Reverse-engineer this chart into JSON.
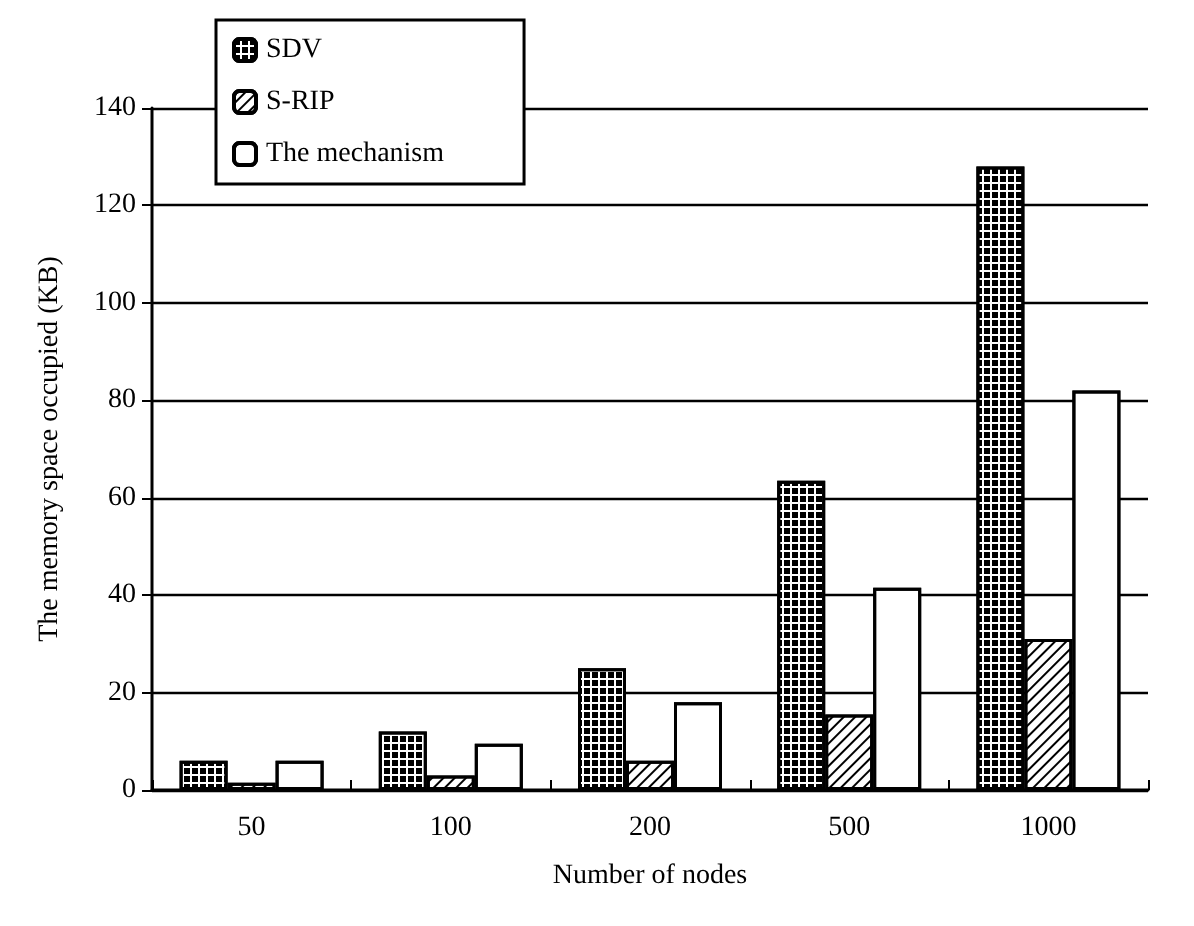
{
  "chart_data": {
    "type": "bar",
    "xlabel": "Number of nodes",
    "ylabel": "The memory space occupied (KB)",
    "categories": [
      "50",
      "100",
      "200",
      "500",
      "1000"
    ],
    "series": [
      {
        "name": "SDV",
        "color": "#ffffff",
        "values": [
          6,
          12,
          25,
          63.5,
          128
        ]
      },
      {
        "name": "S-RIP",
        "color": "#ffffff",
        "values": [
          1.5,
          3,
          6,
          15.5,
          31
        ]
      },
      {
        "name": "The mechanism",
        "color": "#ffffff",
        "values": [
          6,
          9.5,
          18,
          41.5,
          82
        ]
      }
    ],
    "ylim": [
      0,
      140
    ],
    "yticks": [
      0,
      20,
      40,
      60,
      80,
      100,
      120,
      140
    ],
    "grid": "y",
    "legend": "top left"
  }
}
